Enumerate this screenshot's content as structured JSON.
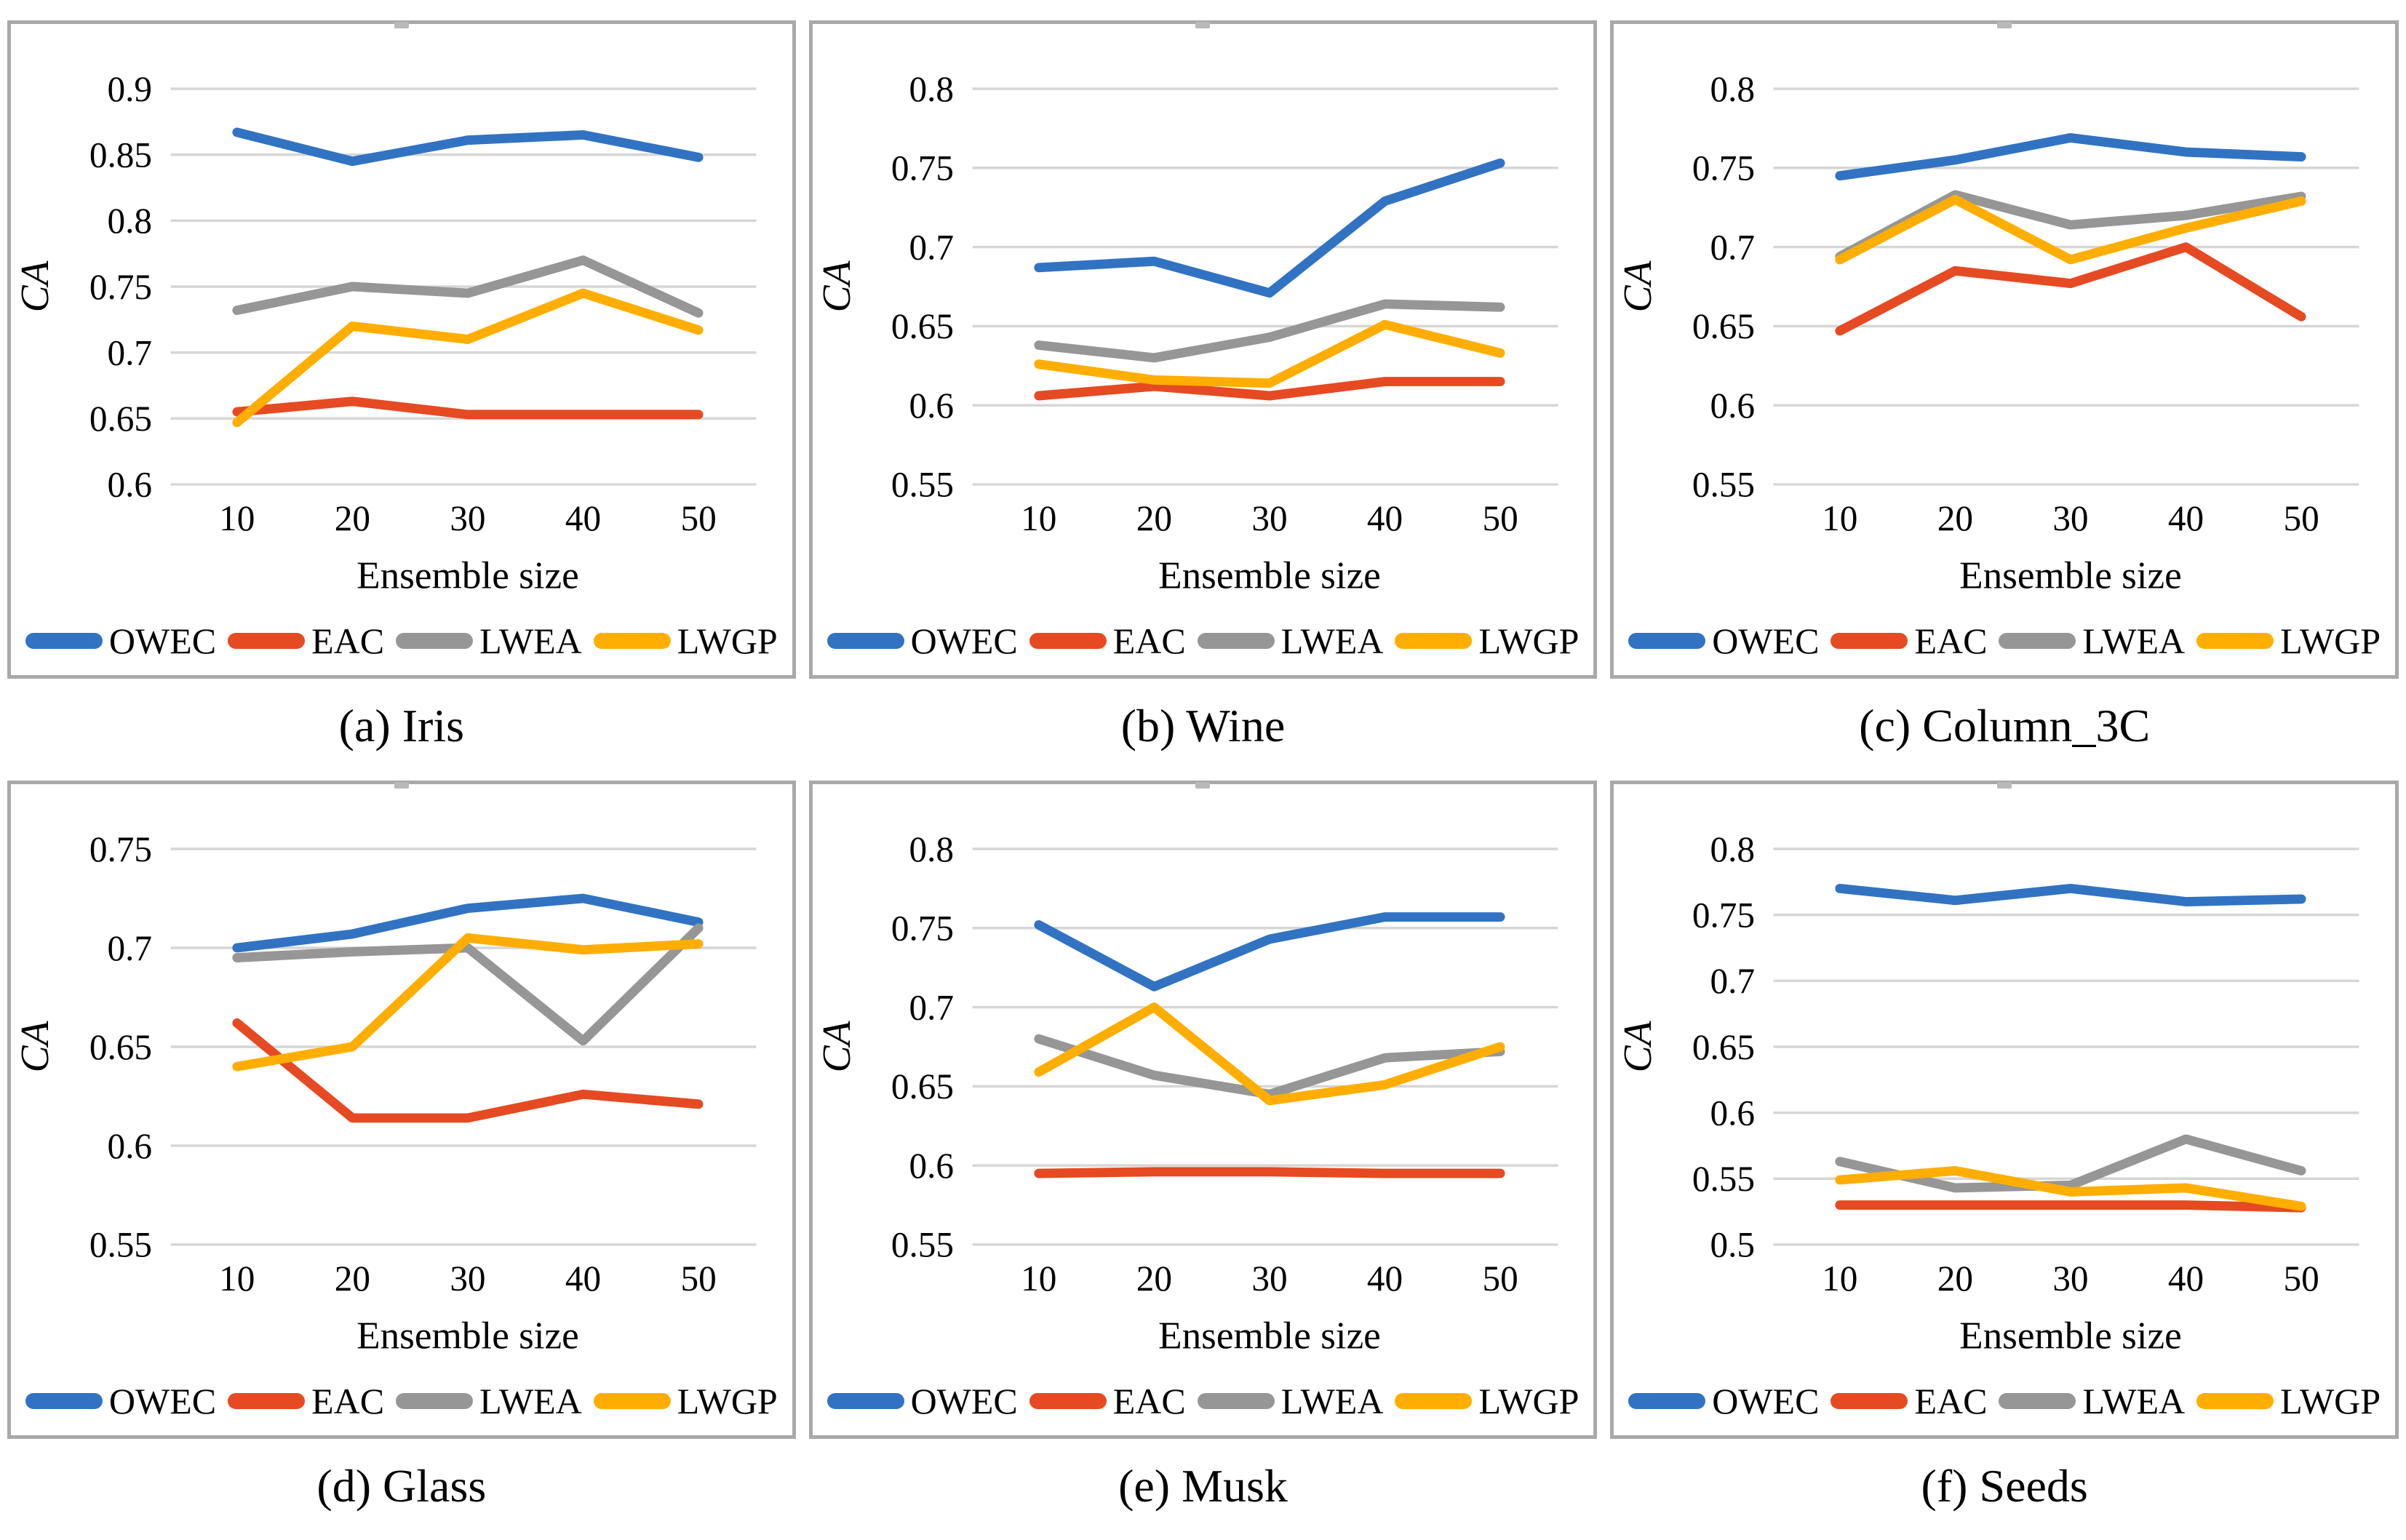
{
  "figure": {
    "xlabel": "Ensemble size",
    "ylabel": "CA"
  },
  "legend": {
    "items": [
      {
        "label": "OWEC",
        "color": "#3173c2"
      },
      {
        "label": "EAC",
        "color": "#e64a22"
      },
      {
        "label": "LWEA",
        "color": "#969696"
      },
      {
        "label": "LWGP",
        "color": "#ffae00"
      }
    ]
  },
  "chart_data": [
    {
      "type": "line",
      "id": "iris",
      "caption": "(a) Iris",
      "title": "Iris",
      "xlabel": "Ensemble size",
      "ylabel": "CA",
      "x": [
        10,
        20,
        30,
        40,
        50
      ],
      "ylim": [
        0.6,
        0.9
      ],
      "yticks": [
        0.6,
        0.65,
        0.7,
        0.75,
        0.8,
        0.85,
        0.9
      ],
      "grid": true,
      "legend_position": "bottom",
      "series": [
        {
          "name": "OWEC",
          "values": [
            0.867,
            0.845,
            0.861,
            0.865,
            0.848
          ]
        },
        {
          "name": "EAC",
          "values": [
            0.655,
            0.663,
            0.653,
            0.653,
            0.653
          ]
        },
        {
          "name": "LWEA",
          "values": [
            0.732,
            0.75,
            0.745,
            0.77,
            0.73
          ]
        },
        {
          "name": "LWGP",
          "values": [
            0.647,
            0.72,
            0.71,
            0.745,
            0.717
          ]
        }
      ]
    },
    {
      "type": "line",
      "id": "wine",
      "caption": "(b) Wine",
      "title": "Wine",
      "xlabel": "Ensemble size",
      "ylabel": "CA",
      "x": [
        10,
        20,
        30,
        40,
        50
      ],
      "ylim": [
        0.55,
        0.8
      ],
      "yticks": [
        0.55,
        0.6,
        0.65,
        0.7,
        0.75,
        0.8
      ],
      "grid": true,
      "legend_position": "bottom",
      "series": [
        {
          "name": "OWEC",
          "values": [
            0.687,
            0.691,
            0.671,
            0.729,
            0.753
          ]
        },
        {
          "name": "EAC",
          "values": [
            0.606,
            0.612,
            0.606,
            0.615,
            0.615
          ]
        },
        {
          "name": "LWEA",
          "values": [
            0.638,
            0.63,
            0.643,
            0.664,
            0.662
          ]
        },
        {
          "name": "LWGP",
          "values": [
            0.626,
            0.616,
            0.614,
            0.651,
            0.633
          ]
        }
      ]
    },
    {
      "type": "line",
      "id": "column_3c",
      "caption": "(c) Column_3C",
      "title": "Column_3C",
      "xlabel": "Ensemble size",
      "ylabel": "CA",
      "x": [
        10,
        20,
        30,
        40,
        50
      ],
      "ylim": [
        0.55,
        0.8
      ],
      "yticks": [
        0.55,
        0.6,
        0.65,
        0.7,
        0.75,
        0.8
      ],
      "grid": true,
      "legend_position": "bottom",
      "series": [
        {
          "name": "OWEC",
          "values": [
            0.745,
            0.755,
            0.769,
            0.76,
            0.757
          ]
        },
        {
          "name": "EAC",
          "values": [
            0.647,
            0.685,
            0.677,
            0.7,
            0.656
          ]
        },
        {
          "name": "LWEA",
          "values": [
            0.694,
            0.733,
            0.714,
            0.72,
            0.732
          ]
        },
        {
          "name": "LWGP",
          "values": [
            0.692,
            0.73,
            0.692,
            0.712,
            0.729
          ]
        }
      ]
    },
    {
      "type": "line",
      "id": "glass",
      "caption": "(d) Glass",
      "title": "Glass",
      "xlabel": "Ensemble size",
      "ylabel": "CA",
      "x": [
        10,
        20,
        30,
        40,
        50
      ],
      "ylim": [
        0.55,
        0.75
      ],
      "yticks": [
        0.55,
        0.6,
        0.65,
        0.7,
        0.75
      ],
      "grid": true,
      "legend_position": "bottom",
      "series": [
        {
          "name": "OWEC",
          "values": [
            0.7,
            0.707,
            0.72,
            0.725,
            0.713
          ]
        },
        {
          "name": "EAC",
          "values": [
            0.662,
            0.614,
            0.614,
            0.626,
            0.621
          ]
        },
        {
          "name": "LWEA",
          "values": [
            0.695,
            0.698,
            0.7,
            0.653,
            0.71
          ]
        },
        {
          "name": "LWGP",
          "values": [
            0.64,
            0.65,
            0.705,
            0.699,
            0.702
          ]
        }
      ]
    },
    {
      "type": "line",
      "id": "musk",
      "caption": "(e) Musk",
      "title": "Musk",
      "xlabel": "Ensemble size",
      "ylabel": "CA",
      "x": [
        10,
        20,
        30,
        40,
        50
      ],
      "ylim": [
        0.55,
        0.8
      ],
      "yticks": [
        0.55,
        0.6,
        0.65,
        0.7,
        0.75,
        0.8
      ],
      "grid": true,
      "legend_position": "bottom",
      "series": [
        {
          "name": "OWEC",
          "values": [
            0.752,
            0.713,
            0.743,
            0.757,
            0.757
          ]
        },
        {
          "name": "EAC",
          "values": [
            0.595,
            0.596,
            0.596,
            0.595,
            0.595
          ]
        },
        {
          "name": "LWEA",
          "values": [
            0.68,
            0.657,
            0.645,
            0.668,
            0.672
          ]
        },
        {
          "name": "LWGP",
          "values": [
            0.659,
            0.7,
            0.641,
            0.651,
            0.675
          ]
        }
      ]
    },
    {
      "type": "line",
      "id": "seeds",
      "caption": "(f) Seeds",
      "title": "Seeds",
      "xlabel": "Ensemble size",
      "ylabel": "CA",
      "x": [
        10,
        20,
        30,
        40,
        50
      ],
      "ylim": [
        0.5,
        0.8
      ],
      "yticks": [
        0.5,
        0.55,
        0.6,
        0.65,
        0.7,
        0.75,
        0.8
      ],
      "grid": true,
      "legend_position": "bottom",
      "series": [
        {
          "name": "OWEC",
          "values": [
            0.77,
            0.761,
            0.77,
            0.76,
            0.762
          ]
        },
        {
          "name": "EAC",
          "values": [
            0.53,
            0.53,
            0.53,
            0.53,
            0.528
          ]
        },
        {
          "name": "LWEA",
          "values": [
            0.563,
            0.543,
            0.545,
            0.58,
            0.556
          ]
        },
        {
          "name": "LWGP",
          "values": [
            0.549,
            0.556,
            0.54,
            0.543,
            0.529
          ]
        }
      ]
    }
  ]
}
